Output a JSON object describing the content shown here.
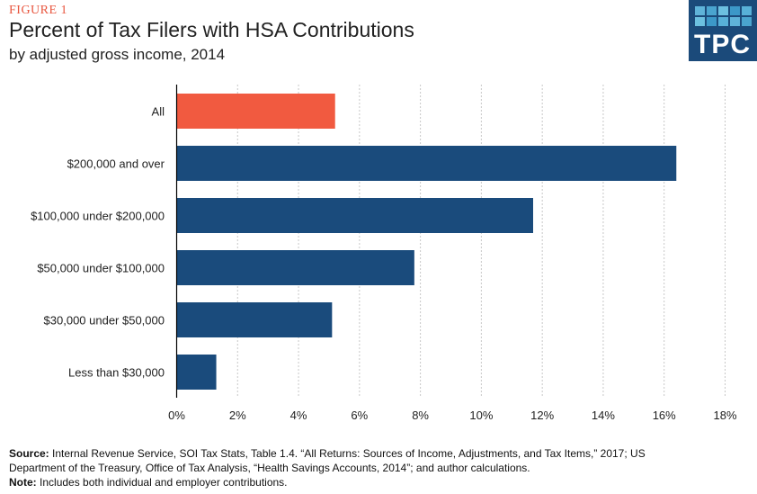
{
  "header": {
    "figure_label": "FIGURE 1",
    "title": "Percent of Tax Filers with HSA Contributions",
    "subtitle": "by adjusted gross income, 2014",
    "logo_text": "TPC"
  },
  "chart_data": {
    "type": "bar",
    "orientation": "horizontal",
    "categories": [
      "All",
      "$200,000 and over",
      "$100,000 under $200,000",
      "$50,000 under $100,000",
      "$30,000 under $50,000",
      "Less than $30,000"
    ],
    "values": [
      5.2,
      16.4,
      11.7,
      7.8,
      5.1,
      1.3
    ],
    "colors": [
      "#f15a40",
      "#1a4b7c",
      "#1a4b7c",
      "#1a4b7c",
      "#1a4b7c",
      "#1a4b7c"
    ],
    "xlim": [
      0,
      18
    ],
    "x_ticks": [
      "0%",
      "2%",
      "4%",
      "6%",
      "8%",
      "10%",
      "12%",
      "14%",
      "16%",
      "18%"
    ],
    "grid": "vertical dotted",
    "xlabel": "",
    "ylabel": ""
  },
  "footer": {
    "source_label": "Source:",
    "source_line1": "Internal Revenue Service, SOI Tax Stats, Table 1.4. “All Returns: Sources of Income, Adjustments, and Tax Items,” 2017; US",
    "source_line2": "Department of the Treasury, Office of Tax Analysis, “Health Savings Accounts, 2014”; and author calculations.",
    "note_label": "Note:",
    "note_text": "Includes both individual and employer contributions."
  }
}
